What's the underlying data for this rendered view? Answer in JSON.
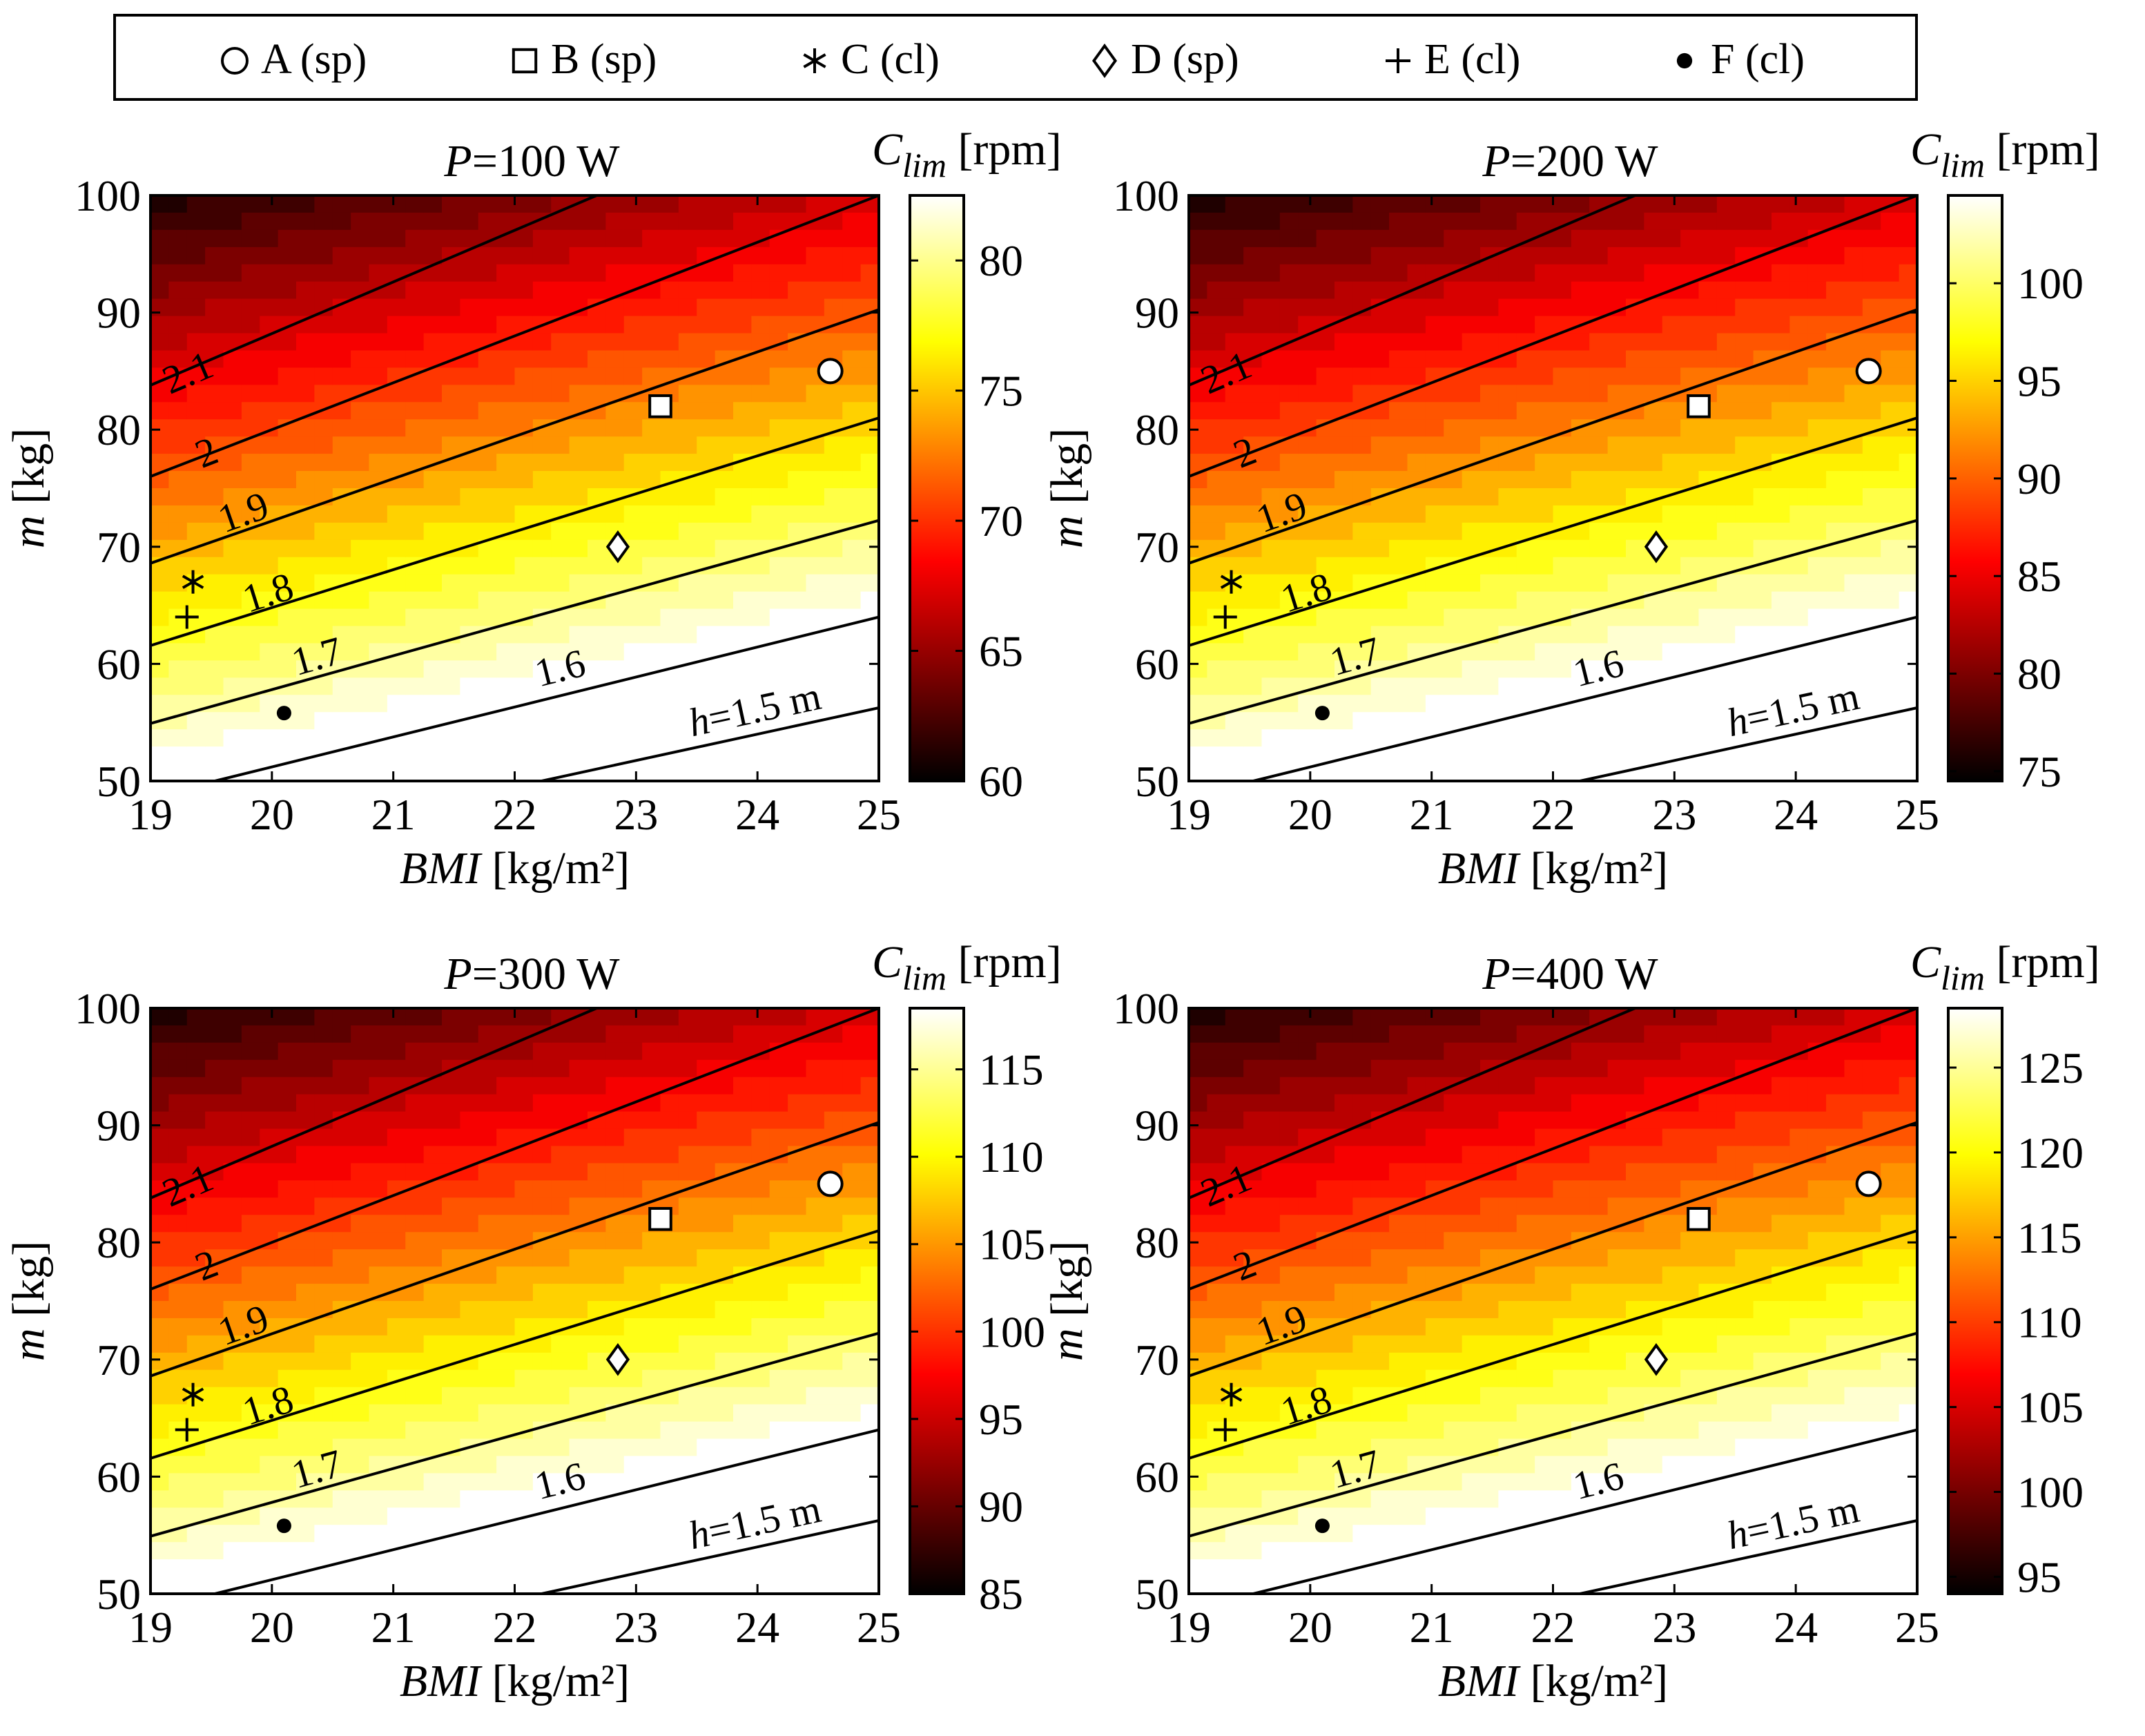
{
  "legend": {
    "items": [
      {
        "marker": "circle-open",
        "label": "A (sp)"
      },
      {
        "marker": "square-open",
        "label": "B (sp)"
      },
      {
        "marker": "asterisk",
        "label": "C (cl)"
      },
      {
        "marker": "diamond-open",
        "label": "D (sp)"
      },
      {
        "marker": "plus",
        "label": "E (cl)"
      },
      {
        "marker": "circle-filled",
        "label": "F (cl)"
      }
    ]
  },
  "chart_data": [
    {
      "type": "heatmap",
      "title": "P=100 W",
      "title_var": "P",
      "title_rest": "=100 W",
      "xlabel_var": "BMI",
      "xlabel_unit": " [kg/m²]",
      "ylabel_var": "m",
      "ylabel_unit": " [kg]",
      "xlim": [
        19,
        25
      ],
      "ylim": [
        50,
        100
      ],
      "xticks": [
        19,
        20,
        21,
        22,
        23,
        24,
        25
      ],
      "yticks": [
        50,
        60,
        70,
        80,
        90,
        100
      ],
      "colorbar": {
        "label_var": "C",
        "label_sub": "lim",
        "label_unit": " [rpm]",
        "range": [
          60,
          82.5
        ],
        "ticks": [
          60,
          65,
          70,
          75,
          80
        ]
      },
      "height_contours": [
        1.5,
        1.6,
        1.7,
        1.8,
        1.9,
        2.0,
        2.1
      ],
      "contour_labels": [
        "h=1.5 m",
        "1.6",
        "1.7",
        "1.8",
        "1.9",
        "2",
        "2.1"
      ],
      "points": [
        {
          "id": "A",
          "bmi": 24.6,
          "m": 85
        },
        {
          "id": "B",
          "bmi": 23.2,
          "m": 82
        },
        {
          "id": "C",
          "bmi": 19.35,
          "m": 67
        },
        {
          "id": "D",
          "bmi": 22.85,
          "m": 70
        },
        {
          "id": "E",
          "bmi": 19.3,
          "m": 64
        },
        {
          "id": "F",
          "bmi": 20.1,
          "m": 55.8
        }
      ]
    },
    {
      "type": "heatmap",
      "title": "P=200 W",
      "title_var": "P",
      "title_rest": "=200 W",
      "xlabel_var": "BMI",
      "xlabel_unit": " [kg/m²]",
      "ylabel_var": "m",
      "ylabel_unit": " [kg]",
      "xlim": [
        19,
        25
      ],
      "ylim": [
        50,
        100
      ],
      "xticks": [
        19,
        20,
        21,
        22,
        23,
        24,
        25
      ],
      "yticks": [
        50,
        60,
        70,
        80,
        90,
        100
      ],
      "colorbar": {
        "label_var": "C",
        "label_sub": "lim",
        "label_unit": " [rpm]",
        "range": [
          74.5,
          104.5
        ],
        "ticks": [
          75,
          80,
          85,
          90,
          95,
          100
        ]
      },
      "height_contours": [
        1.5,
        1.6,
        1.7,
        1.8,
        1.9,
        2.0,
        2.1
      ],
      "contour_labels": [
        "h=1.5 m",
        "1.6",
        "1.7",
        "1.8",
        "1.9",
        "2",
        "2.1"
      ],
      "points": [
        {
          "id": "A",
          "bmi": 24.6,
          "m": 85
        },
        {
          "id": "B",
          "bmi": 23.2,
          "m": 82
        },
        {
          "id": "C",
          "bmi": 19.35,
          "m": 67
        },
        {
          "id": "D",
          "bmi": 22.85,
          "m": 70
        },
        {
          "id": "E",
          "bmi": 19.3,
          "m": 64
        },
        {
          "id": "F",
          "bmi": 20.1,
          "m": 55.8
        }
      ]
    },
    {
      "type": "heatmap",
      "title": "P=300 W",
      "title_var": "P",
      "title_rest": "=300 W",
      "xlabel_var": "BMI",
      "xlabel_unit": " [kg/m²]",
      "ylabel_var": "m",
      "ylabel_unit": " [kg]",
      "xlim": [
        19,
        25
      ],
      "ylim": [
        50,
        100
      ],
      "xticks": [
        19,
        20,
        21,
        22,
        23,
        24,
        25
      ],
      "yticks": [
        50,
        60,
        70,
        80,
        90,
        100
      ],
      "colorbar": {
        "label_var": "C",
        "label_sub": "lim",
        "label_unit": " [rpm]",
        "range": [
          85,
          118.5
        ],
        "ticks": [
          85,
          90,
          95,
          100,
          105,
          110,
          115
        ]
      },
      "height_contours": [
        1.5,
        1.6,
        1.7,
        1.8,
        1.9,
        2.0,
        2.1
      ],
      "contour_labels": [
        "h=1.5 m",
        "1.6",
        "1.7",
        "1.8",
        "1.9",
        "2",
        "2.1"
      ],
      "points": [
        {
          "id": "A",
          "bmi": 24.6,
          "m": 85
        },
        {
          "id": "B",
          "bmi": 23.2,
          "m": 82
        },
        {
          "id": "C",
          "bmi": 19.35,
          "m": 67
        },
        {
          "id": "D",
          "bmi": 22.85,
          "m": 70
        },
        {
          "id": "E",
          "bmi": 19.3,
          "m": 64
        },
        {
          "id": "F",
          "bmi": 20.1,
          "m": 55.8
        }
      ]
    },
    {
      "type": "heatmap",
      "title": "P=400 W",
      "title_var": "P",
      "title_rest": "=400 W",
      "xlabel_var": "BMI",
      "xlabel_unit": " [kg/m²]",
      "ylabel_var": "m",
      "ylabel_unit": " [kg]",
      "xlim": [
        19,
        25
      ],
      "ylim": [
        50,
        100
      ],
      "xticks": [
        19,
        20,
        21,
        22,
        23,
        24,
        25
      ],
      "yticks": [
        50,
        60,
        70,
        80,
        90,
        100
      ],
      "colorbar": {
        "label_var": "C",
        "label_sub": "lim",
        "label_unit": " [rpm]",
        "range": [
          94,
          128.5
        ],
        "ticks": [
          95,
          100,
          105,
          110,
          115,
          120,
          125
        ]
      },
      "height_contours": [
        1.5,
        1.6,
        1.7,
        1.8,
        1.9,
        2.0,
        2.1
      ],
      "contour_labels": [
        "h=1.5 m",
        "1.6",
        "1.7",
        "1.8",
        "1.9",
        "2",
        "2.1"
      ],
      "points": [
        {
          "id": "A",
          "bmi": 24.6,
          "m": 85
        },
        {
          "id": "B",
          "bmi": 23.2,
          "m": 82
        },
        {
          "id": "C",
          "bmi": 19.35,
          "m": 67
        },
        {
          "id": "D",
          "bmi": 22.85,
          "m": 70
        },
        {
          "id": "E",
          "bmi": 19.3,
          "m": 64
        },
        {
          "id": "F",
          "bmi": 20.1,
          "m": 55.8
        }
      ]
    }
  ]
}
